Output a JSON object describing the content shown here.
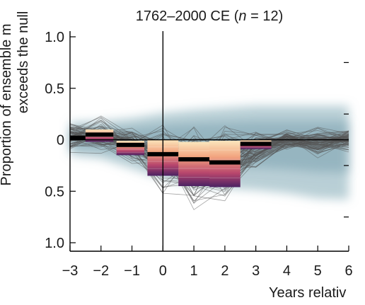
{
  "chart_data": {
    "type": "line",
    "title": "1762–2000 CE (n = 12)",
    "title_parts": {
      "prefix": "1762–2000 CE (",
      "var": "n",
      "suffix": " = 12)"
    },
    "ylabel_line1": "Proportion of ensemble m",
    "ylabel_line2": "exceeds the null",
    "xlabel": "Years relativ",
    "xlim": [
      -3,
      6
    ],
    "ylim": [
      -1.0,
      1.0
    ],
    "x_ticks": [
      -3,
      -2,
      -1,
      0,
      1,
      2,
      3,
      4,
      5,
      6
    ],
    "x_tick_labels": [
      "−3",
      "−2",
      "−1",
      "0",
      "1",
      "2",
      "3",
      "4",
      "5",
      "6"
    ],
    "y_ticks": [
      1.0,
      0.5,
      0,
      -0.5,
      -1.0
    ],
    "y_tick_labels": [
      "1.0",
      "0.5",
      "0",
      "0.5",
      "1.0"
    ],
    "grid": false,
    "null_band": {
      "x": [
        -3,
        -2,
        -1,
        0,
        1,
        2,
        3,
        4,
        5,
        6
      ],
      "upper": [
        0.17,
        0.18,
        0.21,
        0.26,
        0.29,
        0.31,
        0.33,
        0.33,
        0.33,
        0.33
      ],
      "lower": [
        -0.15,
        -0.18,
        -0.28,
        -0.38,
        -0.45,
        -0.47,
        -0.49,
        -0.52,
        -0.57,
        -0.58
      ]
    },
    "ensemble_mean": {
      "x": [
        -3,
        -2,
        -1,
        0,
        1,
        2,
        3,
        4,
        5,
        6
      ],
      "y": [
        0.03,
        0.05,
        -0.05,
        -0.2,
        -0.28,
        -0.26,
        -0.08,
        0.0,
        -0.03,
        0.0
      ]
    },
    "bars": [
      {
        "x0": -3.0,
        "x1": -2.5,
        "min": 0.0,
        "max": 0.04,
        "mean": 0.02
      },
      {
        "x0": -2.5,
        "x1": -1.6,
        "min": -0.02,
        "max": 0.1,
        "mean": 0.05
      },
      {
        "x0": -1.5,
        "x1": -0.6,
        "min": -0.15,
        "max": -0.01,
        "mean": -0.05
      },
      {
        "x0": -0.5,
        "x1": 0.5,
        "min": -0.35,
        "max": 0.0,
        "mean": -0.14
      },
      {
        "x0": 0.5,
        "x1": 1.5,
        "min": -0.45,
        "max": -0.02,
        "mean": -0.19
      },
      {
        "x0": 1.5,
        "x1": 2.5,
        "min": -0.46,
        "max": -0.01,
        "mean": -0.22
      },
      {
        "x0": 2.5,
        "x1": 3.5,
        "min": -0.09,
        "max": 0.0,
        "mean": -0.04
      }
    ]
  }
}
